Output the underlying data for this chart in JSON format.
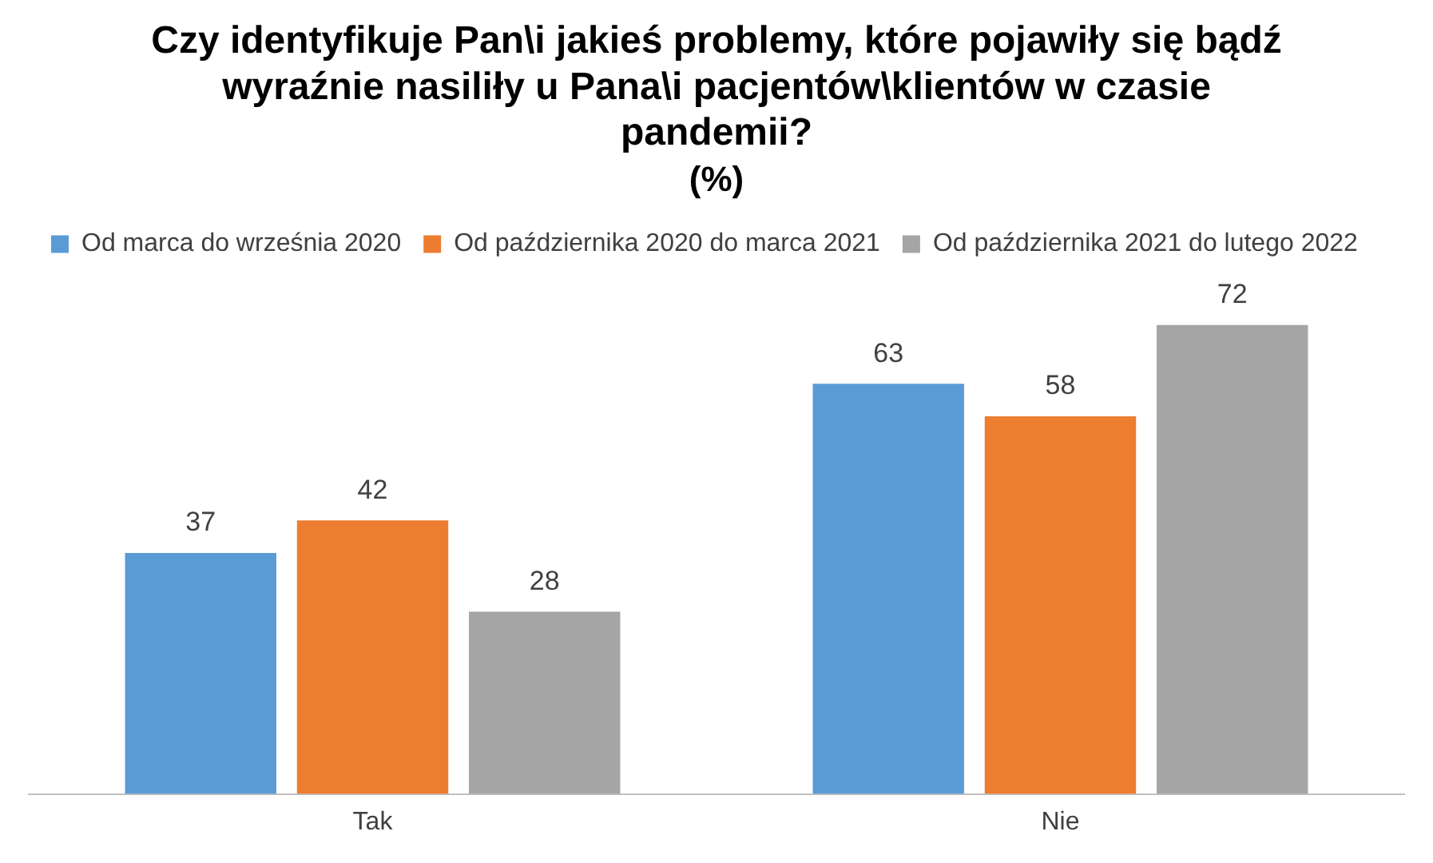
{
  "chart_data": {
    "type": "bar",
    "title": "Czy identyfikuje Pan\\i jakieś problemy, które pojawiły się bądź wyraźnie nasiliły u Pana\\i pacjentów\\klientów w czasie pandemii?",
    "subtitle": "(%)",
    "categories": [
      "Tak",
      "Nie"
    ],
    "series": [
      {
        "name": "Od marca do września 2020",
        "color": "#5b9bd5",
        "values": [
          37,
          63
        ]
      },
      {
        "name": "Od października 2020 do marca 2021",
        "color": "#ed7d31",
        "values": [
          42,
          58
        ]
      },
      {
        "name": "Od października 2021 do lutego 2022",
        "color": "#a5a5a5",
        "values": [
          28,
          72
        ]
      }
    ],
    "data_labels": true,
    "grid": false,
    "legend": "top"
  }
}
